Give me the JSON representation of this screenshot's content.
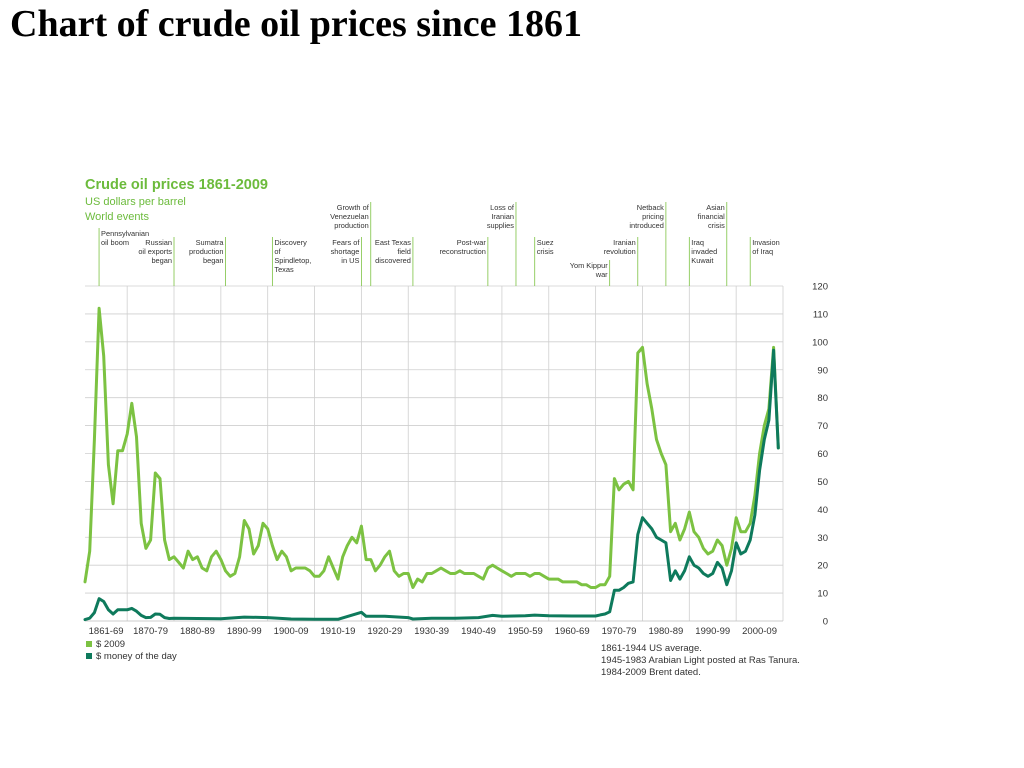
{
  "slide": {
    "title": "Chart of crude oil prices since 1861"
  },
  "chart_data": {
    "type": "line",
    "title": "Crude oil prices 1861-2009",
    "subtitle": "US dollars per barrel",
    "events_heading": "World events",
    "xlim": [
      1861,
      2010
    ],
    "ylim": [
      0,
      120
    ],
    "yticks": [
      0,
      10,
      20,
      30,
      40,
      50,
      60,
      70,
      80,
      90,
      100,
      110,
      120
    ],
    "decades": [
      {
        "label": "1861-69",
        "start": 1861,
        "end": 1870
      },
      {
        "label": "1870-79",
        "start": 1870,
        "end": 1880
      },
      {
        "label": "1880-89",
        "start": 1880,
        "end": 1890
      },
      {
        "label": "1890-99",
        "start": 1890,
        "end": 1900
      },
      {
        "label": "1900-09",
        "start": 1900,
        "end": 1910
      },
      {
        "label": "1910-19",
        "start": 1910,
        "end": 1920
      },
      {
        "label": "1920-29",
        "start": 1920,
        "end": 1930
      },
      {
        "label": "1930-39",
        "start": 1930,
        "end": 1940
      },
      {
        "label": "1940-49",
        "start": 1940,
        "end": 1950
      },
      {
        "label": "1950-59",
        "start": 1950,
        "end": 1960
      },
      {
        "label": "1960-69",
        "start": 1960,
        "end": 1970
      },
      {
        "label": "1970-79",
        "start": 1970,
        "end": 1980
      },
      {
        "label": "1980-89",
        "start": 1980,
        "end": 1990
      },
      {
        "label": "1990-99",
        "start": 1990,
        "end": 2000
      },
      {
        "label": "2000-09",
        "start": 2000,
        "end": 2010
      }
    ],
    "series": [
      {
        "name": "$ 2009",
        "color": "#7cc242",
        "points": [
          [
            1861,
            14
          ],
          [
            1862,
            25
          ],
          [
            1863,
            65
          ],
          [
            1864,
            112
          ],
          [
            1865,
            95
          ],
          [
            1866,
            56
          ],
          [
            1867,
            42
          ],
          [
            1868,
            61
          ],
          [
            1869,
            61
          ],
          [
            1870,
            67
          ],
          [
            1871,
            78
          ],
          [
            1872,
            66
          ],
          [
            1873,
            35
          ],
          [
            1874,
            26
          ],
          [
            1875,
            29
          ],
          [
            1876,
            53
          ],
          [
            1877,
            51
          ],
          [
            1878,
            29
          ],
          [
            1879,
            22
          ],
          [
            1880,
            23
          ],
          [
            1881,
            21
          ],
          [
            1882,
            19
          ],
          [
            1883,
            25
          ],
          [
            1884,
            22
          ],
          [
            1885,
            23
          ],
          [
            1886,
            19
          ],
          [
            1887,
            18
          ],
          [
            1888,
            23
          ],
          [
            1889,
            25
          ],
          [
            1890,
            22
          ],
          [
            1891,
            18
          ],
          [
            1892,
            16
          ],
          [
            1893,
            17
          ],
          [
            1894,
            23
          ],
          [
            1895,
            36
          ],
          [
            1896,
            33
          ],
          [
            1897,
            24
          ],
          [
            1898,
            27
          ],
          [
            1899,
            35
          ],
          [
            1900,
            33
          ],
          [
            1901,
            27
          ],
          [
            1902,
            22
          ],
          [
            1903,
            25
          ],
          [
            1904,
            23
          ],
          [
            1905,
            18
          ],
          [
            1906,
            19
          ],
          [
            1907,
            19
          ],
          [
            1908,
            19
          ],
          [
            1909,
            18
          ],
          [
            1910,
            16
          ],
          [
            1911,
            16
          ],
          [
            1912,
            18
          ],
          [
            1913,
            23
          ],
          [
            1914,
            19
          ],
          [
            1915,
            15
          ],
          [
            1916,
            23
          ],
          [
            1917,
            27
          ],
          [
            1918,
            30
          ],
          [
            1919,
            28
          ],
          [
            1920,
            34
          ],
          [
            1921,
            22
          ],
          [
            1922,
            22
          ],
          [
            1923,
            18
          ],
          [
            1924,
            20
          ],
          [
            1925,
            23
          ],
          [
            1926,
            25
          ],
          [
            1927,
            18
          ],
          [
            1928,
            16
          ],
          [
            1929,
            17
          ],
          [
            1930,
            17
          ],
          [
            1931,
            12
          ],
          [
            1932,
            15
          ],
          [
            1933,
            14
          ],
          [
            1934,
            17
          ],
          [
            1935,
            17
          ],
          [
            1936,
            18
          ],
          [
            1937,
            19
          ],
          [
            1938,
            18
          ],
          [
            1939,
            17
          ],
          [
            1940,
            17
          ],
          [
            1941,
            18
          ],
          [
            1942,
            17
          ],
          [
            1943,
            17
          ],
          [
            1944,
            17
          ],
          [
            1945,
            16
          ],
          [
            1946,
            15
          ],
          [
            1947,
            19
          ],
          [
            1948,
            20
          ],
          [
            1949,
            19
          ],
          [
            1950,
            18
          ],
          [
            1951,
            17
          ],
          [
            1952,
            16
          ],
          [
            1953,
            17
          ],
          [
            1954,
            17
          ],
          [
            1955,
            17
          ],
          [
            1956,
            16
          ],
          [
            1957,
            17
          ],
          [
            1958,
            17
          ],
          [
            1959,
            16
          ],
          [
            1960,
            15
          ],
          [
            1961,
            15
          ],
          [
            1962,
            15
          ],
          [
            1963,
            14
          ],
          [
            1964,
            14
          ],
          [
            1965,
            14
          ],
          [
            1966,
            14
          ],
          [
            1967,
            13
          ],
          [
            1968,
            13
          ],
          [
            1969,
            12
          ],
          [
            1970,
            12
          ],
          [
            1971,
            13
          ],
          [
            1972,
            13
          ],
          [
            1973,
            16
          ],
          [
            1974,
            51
          ],
          [
            1975,
            47
          ],
          [
            1976,
            49
          ],
          [
            1977,
            50
          ],
          [
            1978,
            47
          ],
          [
            1979,
            96
          ],
          [
            1980,
            98
          ],
          [
            1981,
            85
          ],
          [
            1982,
            76
          ],
          [
            1983,
            65
          ],
          [
            1984,
            60
          ],
          [
            1985,
            56
          ],
          [
            1986,
            32
          ],
          [
            1987,
            35
          ],
          [
            1988,
            29
          ],
          [
            1989,
            33
          ],
          [
            1990,
            39
          ],
          [
            1991,
            32
          ],
          [
            1992,
            30
          ],
          [
            1993,
            26
          ],
          [
            1994,
            24
          ],
          [
            1995,
            25
          ],
          [
            1996,
            29
          ],
          [
            1997,
            27
          ],
          [
            1998,
            20
          ],
          [
            1999,
            26
          ],
          [
            2000,
            37
          ],
          [
            2001,
            32
          ],
          [
            2002,
            32
          ],
          [
            2003,
            35
          ],
          [
            2004,
            45
          ],
          [
            2005,
            60
          ],
          [
            2006,
            70
          ],
          [
            2007,
            76
          ],
          [
            2008,
            98
          ],
          [
            2009,
            62
          ]
        ]
      },
      {
        "name": "$ money of the day",
        "color": "#0e7a5c",
        "points": [
          [
            1861,
            0.5
          ],
          [
            1862,
            1
          ],
          [
            1863,
            3
          ],
          [
            1864,
            8
          ],
          [
            1865,
            7
          ],
          [
            1866,
            4
          ],
          [
            1867,
            2.5
          ],
          [
            1868,
            4
          ],
          [
            1869,
            4
          ],
          [
            1870,
            4
          ],
          [
            1871,
            4.5
          ],
          [
            1872,
            3.5
          ],
          [
            1873,
            2
          ],
          [
            1874,
            1.2
          ],
          [
            1875,
            1.3
          ],
          [
            1876,
            2.5
          ],
          [
            1877,
            2.4
          ],
          [
            1878,
            1.2
          ],
          [
            1879,
            0.9
          ],
          [
            1880,
            1
          ],
          [
            1885,
            0.9
          ],
          [
            1890,
            0.8
          ],
          [
            1895,
            1.4
          ],
          [
            1900,
            1.2
          ],
          [
            1905,
            0.7
          ],
          [
            1910,
            0.6
          ],
          [
            1915,
            0.6
          ],
          [
            1920,
            3.1
          ],
          [
            1921,
            1.7
          ],
          [
            1925,
            1.7
          ],
          [
            1930,
            1.2
          ],
          [
            1931,
            0.7
          ],
          [
            1935,
            1
          ],
          [
            1940,
            1
          ],
          [
            1945,
            1.2
          ],
          [
            1948,
            2
          ],
          [
            1950,
            1.7
          ],
          [
            1955,
            1.9
          ],
          [
            1957,
            2.1
          ],
          [
            1960,
            1.9
          ],
          [
            1965,
            1.8
          ],
          [
            1970,
            1.8
          ],
          [
            1971,
            2.2
          ],
          [
            1972,
            2.5
          ],
          [
            1973,
            3.3
          ],
          [
            1974,
            11
          ],
          [
            1975,
            11
          ],
          [
            1976,
            12
          ],
          [
            1977,
            13.5
          ],
          [
            1978,
            14
          ],
          [
            1979,
            31
          ],
          [
            1980,
            37
          ],
          [
            1981,
            35
          ],
          [
            1982,
            33
          ],
          [
            1983,
            30
          ],
          [
            1984,
            29
          ],
          [
            1985,
            28
          ],
          [
            1986,
            14.5
          ],
          [
            1987,
            18
          ],
          [
            1988,
            15
          ],
          [
            1989,
            18
          ],
          [
            1990,
            23
          ],
          [
            1991,
            20
          ],
          [
            1992,
            19
          ],
          [
            1993,
            17
          ],
          [
            1994,
            16
          ],
          [
            1995,
            17
          ],
          [
            1996,
            21
          ],
          [
            1997,
            19
          ],
          [
            1998,
            13
          ],
          [
            1999,
            18
          ],
          [
            2000,
            28
          ],
          [
            2001,
            24
          ],
          [
            2002,
            25
          ],
          [
            2003,
            29
          ],
          [
            2004,
            38
          ],
          [
            2005,
            54
          ],
          [
            2006,
            65
          ],
          [
            2007,
            72
          ],
          [
            2008,
            97
          ],
          [
            2009,
            62
          ]
        ]
      }
    ],
    "events": [
      {
        "text": [
          "Pennsylvanian",
          "oil boom"
        ],
        "year": 1864,
        "align": "start",
        "row": 1
      },
      {
        "text": [
          "Russian",
          "oil exports",
          "began"
        ],
        "year": 1880,
        "align": "end",
        "row": 2
      },
      {
        "text": [
          "Sumatra",
          "production",
          "began"
        ],
        "year": 1891,
        "align": "end",
        "row": 2
      },
      {
        "text": [
          "Discovery",
          "of",
          "Spindletop,",
          "Texas"
        ],
        "year": 1901,
        "align": "start",
        "row": 2
      },
      {
        "text": [
          "Growth of",
          "Venezuelan",
          "production"
        ],
        "year": 1922,
        "align": "end",
        "row": 0
      },
      {
        "text": [
          "Fears of",
          "shortage",
          "in US"
        ],
        "year": 1920,
        "align": "end",
        "row": 2
      },
      {
        "text": [
          "East Texas",
          "field",
          "discovered"
        ],
        "year": 1931,
        "align": "end",
        "row": 2
      },
      {
        "text": [
          "Post-war",
          "reconstruction"
        ],
        "year": 1947,
        "align": "end",
        "row": 2
      },
      {
        "text": [
          "Loss of",
          "Iranian",
          "supplies"
        ],
        "year": 1953,
        "align": "end",
        "row": 0
      },
      {
        "text": [
          "Suez",
          "crisis"
        ],
        "year": 1957,
        "align": "start",
        "row": 2
      },
      {
        "text": [
          "Yom Kippur",
          "war"
        ],
        "year": 1973,
        "align": "end",
        "row": 3
      },
      {
        "text": [
          "Iranian",
          "revolution"
        ],
        "year": 1979,
        "align": "end",
        "row": 2
      },
      {
        "text": [
          "Netback",
          "pricing",
          "introduced"
        ],
        "year": 1985,
        "align": "end",
        "row": 0
      },
      {
        "text": [
          "Iraq",
          "invaded",
          "Kuwait"
        ],
        "year": 1990,
        "align": "start",
        "row": 2
      },
      {
        "text": [
          "Asian",
          "financial",
          "crisis"
        ],
        "year": 1998,
        "align": "end",
        "row": 0
      },
      {
        "text": [
          "Invasion",
          "of Iraq"
        ],
        "year": 2003,
        "align": "start",
        "row": 2
      }
    ],
    "notes": [
      "1861-1944 US average.",
      "1945-1983 Arabian Light posted at Ras Tanura.",
      "1984-2009 Brent dated."
    ],
    "grid": true,
    "legend_position": "bottom-left"
  }
}
